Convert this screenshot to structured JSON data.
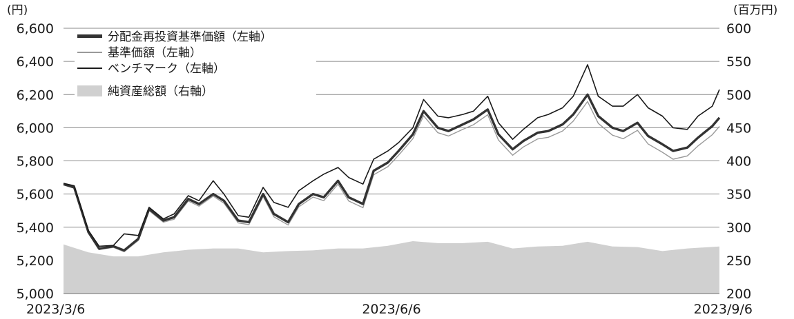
{
  "chart_data": {
    "type": "line",
    "title": "",
    "left_axis": {
      "unit": "(円)",
      "ylim": [
        5000,
        6600
      ],
      "ticks": [
        "5,000",
        "5,200",
        "5,400",
        "5,600",
        "5,800",
        "6,000",
        "6,200",
        "6,400",
        "6,600"
      ]
    },
    "right_axis": {
      "unit": "(百万円)",
      "ylim": [
        200,
        600
      ],
      "ticks": [
        "200",
        "250",
        "300",
        "350",
        "400",
        "450",
        "500",
        "550",
        "600"
      ]
    },
    "x_axis": {
      "range": [
        "2023/3/6",
        "2023/9/6"
      ],
      "tick_labels": [
        "2023/3/6",
        "2023/6/6",
        "2023/9/6"
      ]
    },
    "grid": "horizontal",
    "legend_position": "top-left",
    "series": [
      {
        "name": "分配金再投資基準価額（左軸）",
        "axis": "left",
        "color": "#333333",
        "style": "thick-line",
        "x": [
          "2023/3/6",
          "2023/3/9",
          "2023/3/13",
          "2023/3/16",
          "2023/3/20",
          "2023/3/23",
          "2023/3/27",
          "2023/3/30",
          "2023/4/3",
          "2023/4/6",
          "2023/4/10",
          "2023/4/13",
          "2023/4/17",
          "2023/4/20",
          "2023/4/24",
          "2023/4/27",
          "2023/5/1",
          "2023/5/4",
          "2023/5/8",
          "2023/5/11",
          "2023/5/15",
          "2023/5/18",
          "2023/5/22",
          "2023/5/25",
          "2023/5/29",
          "2023/6/1",
          "2023/6/5",
          "2023/6/8",
          "2023/6/12",
          "2023/6/15",
          "2023/6/19",
          "2023/6/22",
          "2023/6/26",
          "2023/6/29",
          "2023/7/3",
          "2023/7/6",
          "2023/7/10",
          "2023/7/13",
          "2023/7/17",
          "2023/7/20",
          "2023/7/24",
          "2023/7/27",
          "2023/7/31",
          "2023/8/3",
          "2023/8/7",
          "2023/8/10",
          "2023/8/14",
          "2023/8/17",
          "2023/8/21",
          "2023/8/24",
          "2023/8/28",
          "2023/8/31",
          "2023/9/4",
          "2023/9/6"
        ],
        "values": [
          5660,
          5640,
          5370,
          5270,
          5285,
          5260,
          5330,
          5510,
          5440,
          5460,
          5570,
          5540,
          5600,
          5560,
          5440,
          5430,
          5600,
          5480,
          5430,
          5540,
          5600,
          5580,
          5680,
          5580,
          5540,
          5740,
          5790,
          5860,
          5960,
          6100,
          6000,
          5980,
          6020,
          6050,
          6110,
          5960,
          5870,
          5920,
          5970,
          5980,
          6020,
          6080,
          6200,
          6070,
          6000,
          5980,
          6030,
          5950,
          5900,
          5860,
          5880,
          5940,
          6010,
          6060
        ]
      },
      {
        "name": "基準価額（左軸）",
        "axis": "left",
        "color": "#9a9a9a",
        "style": "thin-line",
        "x": [
          "2023/3/6",
          "2023/3/9",
          "2023/3/13",
          "2023/3/16",
          "2023/3/20",
          "2023/3/23",
          "2023/3/27",
          "2023/3/30",
          "2023/4/3",
          "2023/4/6",
          "2023/4/10",
          "2023/4/13",
          "2023/4/17",
          "2023/4/20",
          "2023/4/24",
          "2023/4/27",
          "2023/5/1",
          "2023/5/4",
          "2023/5/8",
          "2023/5/11",
          "2023/5/15",
          "2023/5/18",
          "2023/5/22",
          "2023/5/25",
          "2023/5/29",
          "2023/6/1",
          "2023/6/5",
          "2023/6/8",
          "2023/6/12",
          "2023/6/15",
          "2023/6/19",
          "2023/6/22",
          "2023/6/26",
          "2023/6/29",
          "2023/7/3",
          "2023/7/6",
          "2023/7/10",
          "2023/7/13",
          "2023/7/17",
          "2023/7/20",
          "2023/7/24",
          "2023/7/27",
          "2023/7/31",
          "2023/8/3",
          "2023/8/7",
          "2023/8/10",
          "2023/8/14",
          "2023/8/17",
          "2023/8/21",
          "2023/8/24",
          "2023/8/28",
          "2023/8/31",
          "2023/9/4",
          "2023/9/6"
        ],
        "values": [
          5655,
          5635,
          5365,
          5265,
          5278,
          5252,
          5320,
          5500,
          5430,
          5448,
          5558,
          5527,
          5588,
          5545,
          5426,
          5415,
          5585,
          5463,
          5413,
          5523,
          5582,
          5560,
          5660,
          5558,
          5518,
          5716,
          5765,
          5834,
          5934,
          6072,
          5970,
          5950,
          5990,
          6018,
          6078,
          5926,
          5834,
          5884,
          5932,
          5942,
          5980,
          6040,
          6158,
          6026,
          5955,
          5934,
          5984,
          5902,
          5852,
          5810,
          5830,
          5890,
          5958,
          6008
        ]
      },
      {
        "name": "ベンチマーク（左軸）",
        "axis": "left",
        "color": "#1a1a1a",
        "style": "thin-line",
        "x": [
          "2023/3/6",
          "2023/3/9",
          "2023/3/13",
          "2023/3/16",
          "2023/3/20",
          "2023/3/23",
          "2023/3/27",
          "2023/3/30",
          "2023/4/3",
          "2023/4/6",
          "2023/4/10",
          "2023/4/13",
          "2023/4/17",
          "2023/4/20",
          "2023/4/24",
          "2023/4/27",
          "2023/5/1",
          "2023/5/4",
          "2023/5/8",
          "2023/5/11",
          "2023/5/15",
          "2023/5/18",
          "2023/5/22",
          "2023/5/25",
          "2023/5/29",
          "2023/6/1",
          "2023/6/5",
          "2023/6/8",
          "2023/6/12",
          "2023/6/15",
          "2023/6/19",
          "2023/6/22",
          "2023/6/26",
          "2023/6/29",
          "2023/7/3",
          "2023/7/6",
          "2023/7/10",
          "2023/7/13",
          "2023/7/17",
          "2023/7/20",
          "2023/7/24",
          "2023/7/27",
          "2023/7/31",
          "2023/8/3",
          "2023/8/7",
          "2023/8/10",
          "2023/8/14",
          "2023/8/17",
          "2023/8/21",
          "2023/8/24",
          "2023/8/28",
          "2023/8/31",
          "2023/9/4",
          "2023/9/6"
        ],
        "values": [
          5665,
          5650,
          5380,
          5285,
          5290,
          5360,
          5350,
          5520,
          5450,
          5480,
          5590,
          5560,
          5680,
          5600,
          5470,
          5460,
          5640,
          5550,
          5520,
          5620,
          5680,
          5720,
          5760,
          5700,
          5660,
          5810,
          5860,
          5910,
          6000,
          6170,
          6070,
          6060,
          6080,
          6100,
          6190,
          6030,
          5930,
          5990,
          6060,
          6080,
          6120,
          6190,
          6380,
          6190,
          6130,
          6130,
          6200,
          6120,
          6070,
          6000,
          5990,
          6070,
          6130,
          6230
        ]
      },
      {
        "name": "純資産総額（右軸）",
        "axis": "right",
        "color": "#d0d0d0",
        "style": "area",
        "x": [
          "2023/3/6",
          "2023/3/13",
          "2023/3/20",
          "2023/3/27",
          "2023/4/3",
          "2023/4/10",
          "2023/4/17",
          "2023/4/24",
          "2023/5/1",
          "2023/5/8",
          "2023/5/15",
          "2023/5/22",
          "2023/5/29",
          "2023/6/5",
          "2023/6/12",
          "2023/6/19",
          "2023/6/26",
          "2023/7/3",
          "2023/7/10",
          "2023/7/17",
          "2023/7/24",
          "2023/7/31",
          "2023/8/7",
          "2023/8/14",
          "2023/8/21",
          "2023/8/28",
          "2023/9/6"
        ],
        "values": [
          274,
          262,
          256,
          256,
          262,
          266,
          268,
          268,
          262,
          264,
          265,
          268,
          268,
          272,
          279,
          276,
          276,
          278,
          268,
          271,
          272,
          278,
          271,
          270,
          264,
          268,
          271
        ]
      }
    ]
  }
}
